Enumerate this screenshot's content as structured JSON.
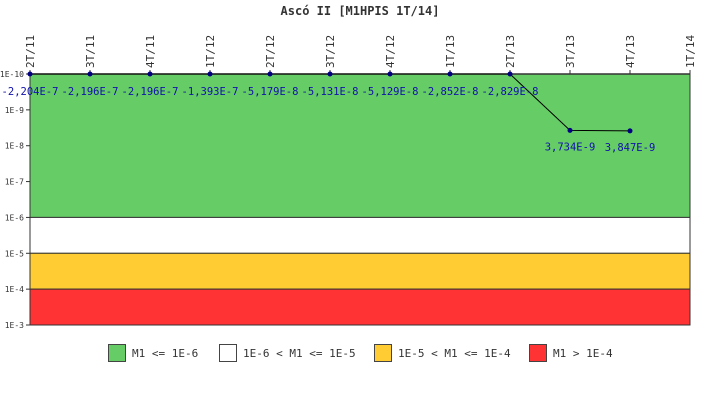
{
  "chart_data": {
    "type": "line",
    "title": "Ascó II [M1HPIS 1T/14]",
    "categories": [
      "2T/11",
      "3T/11",
      "4T/11",
      "1T/12",
      "2T/12",
      "3T/12",
      "4T/12",
      "1T/13",
      "2T/13",
      "3T/13",
      "4T/13",
      "1T/14"
    ],
    "y_scale": "log",
    "y_axis_inverted": true,
    "y_ticks": [
      "1E-10",
      "1E-9",
      "1E-8",
      "1E-7",
      "1E-6",
      "1E-5",
      "1E-4",
      "1E-3"
    ],
    "ylim": [
      1e-10,
      0.001
    ],
    "grid": false,
    "legend_position": "bottom",
    "series": [
      {
        "color": "#000080",
        "points": [
          {
            "x": "2T/11",
            "y": -2.204e-07,
            "label": "-2,204E-7"
          },
          {
            "x": "3T/11",
            "y": -2.196e-07,
            "label": "-2,196E-7"
          },
          {
            "x": "4T/11",
            "y": -2.196e-07,
            "label": "-2,196E-7"
          },
          {
            "x": "1T/12",
            "y": -1.393e-07,
            "label": "-1,393E-7"
          },
          {
            "x": "2T/12",
            "y": -5.179e-08,
            "label": "-5,179E-8"
          },
          {
            "x": "3T/12",
            "y": -5.131e-08,
            "label": "-5,131E-8"
          },
          {
            "x": "4T/12",
            "y": -5.129e-08,
            "label": "-5,129E-8"
          },
          {
            "x": "1T/13",
            "y": -2.852e-08,
            "label": "-2,852E-8"
          },
          {
            "x": "2T/13",
            "y": -2.829e-08,
            "label": "-2,829E-8"
          },
          {
            "x": "3T/13",
            "y": 3.734e-09,
            "label": "3,734E-9"
          },
          {
            "x": "4T/13",
            "y": 3.847e-09,
            "label": "3,847E-9"
          }
        ]
      }
    ],
    "bands": [
      {
        "from": 1e-10,
        "to": 1e-06,
        "color": "#66cc66",
        "label": "M1 <= 1E-6"
      },
      {
        "from": 1e-06,
        "to": 1e-05,
        "color": "#ffffff",
        "label": "1E-6 < M1 <= 1E-5"
      },
      {
        "from": 1e-05,
        "to": 0.0001,
        "color": "#ffcc33",
        "label": "1E-5 < M1 <= 1E-4"
      },
      {
        "from": 0.0001,
        "to": 0.001,
        "color": "#ff3333",
        "label": "M1 > 1E-4"
      }
    ]
  }
}
